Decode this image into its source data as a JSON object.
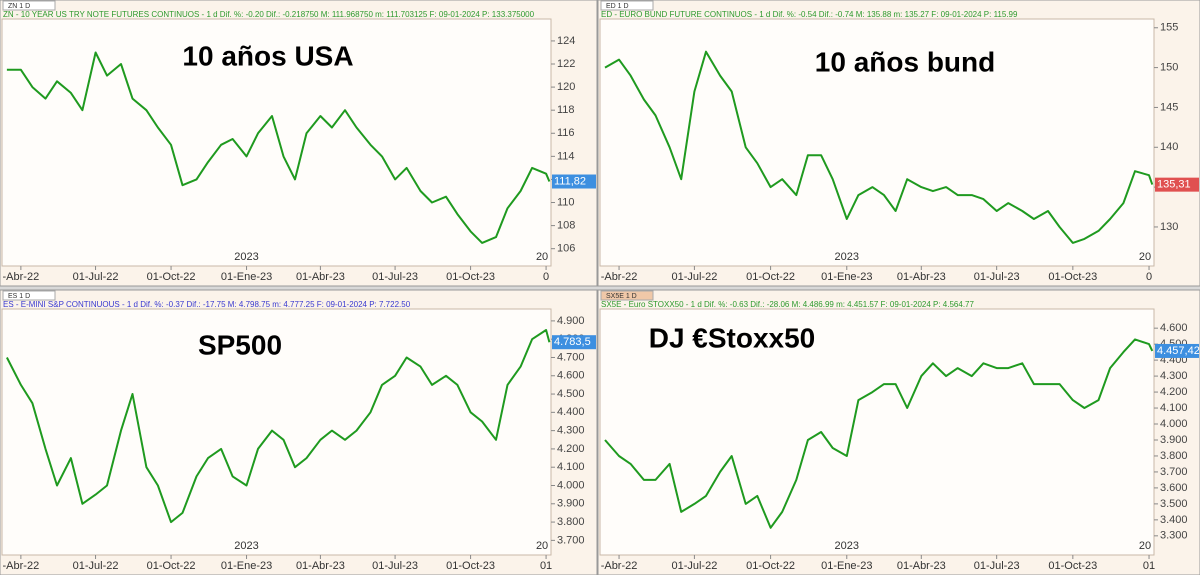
{
  "chart_data": [
    {
      "type": "line",
      "tab": "ZN 1 D",
      "header": "ZN - 10 YEAR US TRY NOTE FUTURES CONTINUOS - 1 d Dif. %: -0.20 Dif.: -0.218750 M: 111.968750 m: 111.703125 F: 09-01-2024 P: 133.375000",
      "header_color": "#2e9a2e",
      "title": "10 años USA",
      "x": [
        "15-Mar-22",
        "01-Abr-22",
        "15-Abr-22",
        "01-May-22",
        "15-May-22",
        "01-Jun-22",
        "15-Jun-22",
        "01-Jul-22",
        "15-Jul-22",
        "01-Ago-22",
        "15-Ago-22",
        "01-Sep-22",
        "15-Sep-22",
        "01-Oct-22",
        "15-Oct-22",
        "01-Nov-22",
        "15-Nov-22",
        "01-Dic-22",
        "15-Dic-22",
        "01-Ene-23",
        "15-Ene-23",
        "01-Feb-23",
        "15-Feb-23",
        "01-Mar-23",
        "15-Mar-23",
        "01-Abr-23",
        "15-Abr-23",
        "01-May-23",
        "15-May-23",
        "01-Jun-23",
        "15-Jun-23",
        "01-Jul-23",
        "15-Jul-23",
        "01-Ago-23",
        "15-Ago-23",
        "01-Sep-23",
        "15-Sep-23",
        "01-Oct-23",
        "15-Oct-23",
        "01-Nov-23",
        "15-Nov-23",
        "01-Dic-23",
        "15-Dic-23",
        "01-Ene-24",
        "05-Ene-24"
      ],
      "values": [
        121.5,
        121.5,
        120,
        119,
        120.5,
        119.5,
        118,
        123,
        121,
        122,
        119,
        118,
        116.5,
        115,
        111.5,
        112,
        113.5,
        115,
        115.5,
        114,
        116,
        117.5,
        114,
        112,
        116,
        117.5,
        116.5,
        118,
        116.5,
        115,
        114,
        112,
        113,
        111,
        110,
        110.5,
        109,
        107.5,
        106.5,
        107,
        109.5,
        111,
        113,
        112.5,
        111.82
      ],
      "color": "#1f9a1f",
      "xlim": [
        "09-Mar-22",
        "07-Ene-24"
      ],
      "ylim": [
        104.5,
        125.9
      ],
      "yticks": [
        106,
        108,
        110,
        112,
        114,
        116,
        118,
        120,
        122,
        124
      ],
      "xticks": [
        {
          "value": "01-Abr-22",
          "label": "-Abr-22"
        },
        "01-Jul-22",
        "01-Oct-22",
        "01-Ene-23",
        "01-Abr-23",
        "01-Jul-23",
        "01-Oct-23",
        {
          "value": "01-Ene-24",
          "label": "0"
        }
      ],
      "annotations": [
        {
          "x": "01-Ene-23",
          "text": "2023"
        },
        {
          "x": "01-Ene-24",
          "text": "20"
        }
      ],
      "last_price": {
        "value": 111.82,
        "label": "111,82"
      },
      "last_color": "#3d8fe0"
    },
    {
      "type": "line",
      "tab": "ED 1 D",
      "header": "ED - EURO BUND FUTURE CONTINUOS - 1 d Dif. %: -0.54 Dif.: -0.74 M: 135.88 m: 135.27 F: 09-01-2024 P: 115.99",
      "header_color": "#2e9a2e",
      "title": "10 años bund",
      "x": [
        "15-Mar-22",
        "01-Abr-22",
        "15-Abr-22",
        "01-May-22",
        "15-May-22",
        "01-Jun-22",
        "15-Jun-22",
        "01-Jul-22",
        "15-Jul-22",
        "01-Ago-22",
        "15-Ago-22",
        "01-Sep-22",
        "15-Sep-22",
        "01-Oct-22",
        "15-Oct-22",
        "01-Nov-22",
        "15-Nov-22",
        "01-Dic-22",
        "15-Dic-22",
        "01-Ene-23",
        "15-Ene-23",
        "01-Feb-23",
        "15-Feb-23",
        "01-Mar-23",
        "15-Mar-23",
        "01-Abr-23",
        "15-Abr-23",
        "01-May-23",
        "15-May-23",
        "01-Jun-23",
        "15-Jun-23",
        "01-Jul-23",
        "15-Jul-23",
        "01-Ago-23",
        "15-Ago-23",
        "01-Sep-23",
        "15-Sep-23",
        "01-Oct-23",
        "15-Oct-23",
        "01-Nov-23",
        "15-Nov-23",
        "01-Dic-23",
        "15-Dic-23",
        "01-Ene-24",
        "05-Ene-24"
      ],
      "values": [
        150,
        151,
        149,
        146,
        144,
        140,
        136,
        147,
        152,
        149,
        147,
        140,
        138,
        135,
        136,
        134,
        139,
        139,
        136,
        131,
        134,
        135,
        134,
        132,
        136,
        135,
        134.5,
        135,
        134,
        134,
        133.5,
        132,
        133,
        132,
        131,
        132,
        130,
        128,
        128.5,
        129.5,
        131,
        133,
        137,
        136.5,
        135.31
      ],
      "color": "#1f9a1f",
      "xlim": [
        "09-Mar-22",
        "07-Ene-24"
      ],
      "ylim": [
        125.1,
        156.1
      ],
      "yticks": [
        130,
        135,
        140,
        145,
        150,
        155
      ],
      "xticks": [
        {
          "value": "01-Abr-22",
          "label": "-Abr-22"
        },
        "01-Jul-22",
        "01-Oct-22",
        "01-Ene-23",
        "01-Abr-23",
        "01-Jul-23",
        "01-Oct-23",
        {
          "value": "01-Ene-24",
          "label": "0"
        }
      ],
      "annotations": [
        {
          "x": "01-Ene-23",
          "text": "2023"
        },
        {
          "x": "01-Ene-24",
          "text": "20"
        }
      ],
      "last_price": {
        "value": 135.31,
        "label": "135,31"
      },
      "last_color": "#e05050"
    },
    {
      "type": "line",
      "tab": "ES 1 D",
      "header": "ES - E-MINI S&P CONTINUOUS - 1 d Dif. %: -0.37 Dif.: -17.75 M: 4.798.75 m: 4.777.25 F: 09-01-2024 P: 7.722.50",
      "header_color": "#3a3ad0",
      "title": "SP500",
      "x": [
        "15-Mar-22",
        "01-Abr-22",
        "15-Abr-22",
        "01-May-22",
        "15-May-22",
        "01-Jun-22",
        "15-Jun-22",
        "01-Jul-22",
        "15-Jul-22",
        "01-Ago-22",
        "15-Ago-22",
        "01-Sep-22",
        "15-Sep-22",
        "01-Oct-22",
        "15-Oct-22",
        "01-Nov-22",
        "15-Nov-22",
        "01-Dic-22",
        "15-Dic-22",
        "01-Ene-23",
        "15-Ene-23",
        "01-Feb-23",
        "15-Feb-23",
        "01-Mar-23",
        "15-Mar-23",
        "01-Abr-23",
        "15-Abr-23",
        "01-May-23",
        "15-May-23",
        "01-Jun-23",
        "15-Jun-23",
        "01-Jul-23",
        "15-Jul-23",
        "01-Ago-23",
        "15-Ago-23",
        "01-Sep-23",
        "15-Sep-23",
        "01-Oct-23",
        "15-Oct-23",
        "01-Nov-23",
        "15-Nov-23",
        "01-Dic-23",
        "15-Dic-23",
        "01-Ene-24",
        "05-Ene-24"
      ],
      "values": [
        4700,
        4550,
        4450,
        4200,
        4000,
        4150,
        3900,
        3950,
        4000,
        4300,
        4500,
        4100,
        4000,
        3800,
        3850,
        4050,
        4150,
        4200,
        4050,
        4000,
        4200,
        4300,
        4250,
        4100,
        4150,
        4250,
        4300,
        4250,
        4300,
        4400,
        4550,
        4600,
        4700,
        4650,
        4550,
        4600,
        4550,
        4400,
        4350,
        4250,
        4550,
        4650,
        4800,
        4850,
        4783.5
      ],
      "color": "#1f9a1f",
      "xlim": [
        "09-Mar-22",
        "07-Ene-24"
      ],
      "ylim": [
        3620,
        4965
      ],
      "yticks": [
        {
          "value": 3700,
          "label": "3.700"
        },
        {
          "value": 3800,
          "label": "3.800"
        },
        {
          "value": 3900,
          "label": "3.900"
        },
        {
          "value": 4000,
          "label": "4.000"
        },
        {
          "value": 4100,
          "label": "4.100"
        },
        {
          "value": 4200,
          "label": "4.200"
        },
        {
          "value": 4300,
          "label": "4.300"
        },
        {
          "value": 4400,
          "label": "4.400"
        },
        {
          "value": 4500,
          "label": "4.500"
        },
        {
          "value": 4600,
          "label": "4.600"
        },
        {
          "value": 4700,
          "label": "4.700"
        },
        {
          "value": 4800,
          "label": "4.800"
        },
        {
          "value": 4900,
          "label": "4.900"
        }
      ],
      "xticks": [
        {
          "value": "01-Abr-22",
          "label": "-Abr-22"
        },
        "01-Jul-22",
        "01-Oct-22",
        "01-Ene-23",
        "01-Abr-23",
        "01-Jul-23",
        "01-Oct-23",
        {
          "value": "01-Ene-24",
          "label": "01"
        }
      ],
      "annotations": [
        {
          "x": "01-Ene-23",
          "text": "2023"
        },
        {
          "x": "01-Ene-24",
          "text": "20"
        }
      ],
      "last_price": {
        "value": 4783.5,
        "label": "4.783,5"
      },
      "last_color": "#3d8fe0"
    },
    {
      "type": "line",
      "tab": "SX5E 1 D",
      "header": "SX5E - Euro STOXX50 - 1 d Dif. %: -0.63 Dif.: -28.06 M: 4.486.99 m: 4.451.57 F: 09-01-2024 P: 4.564.77",
      "header_color": "#2e9a2e",
      "title": "DJ €Stoxx50",
      "x": [
        "15-Mar-22",
        "01-Abr-22",
        "15-Abr-22",
        "01-May-22",
        "15-May-22",
        "01-Jun-22",
        "15-Jun-22",
        "01-Jul-22",
        "15-Jul-22",
        "01-Ago-22",
        "15-Ago-22",
        "01-Sep-22",
        "15-Sep-22",
        "01-Oct-22",
        "15-Oct-22",
        "01-Nov-22",
        "15-Nov-22",
        "01-Dic-22",
        "15-Dic-22",
        "01-Ene-23",
        "15-Ene-23",
        "01-Feb-23",
        "15-Feb-23",
        "01-Mar-23",
        "15-Mar-23",
        "01-Abr-23",
        "15-Abr-23",
        "01-May-23",
        "15-May-23",
        "01-Jun-23",
        "15-Jun-23",
        "01-Jul-23",
        "15-Jul-23",
        "01-Ago-23",
        "15-Ago-23",
        "01-Sep-23",
        "15-Sep-23",
        "01-Oct-23",
        "15-Oct-23",
        "01-Nov-23",
        "15-Nov-23",
        "01-Dic-23",
        "15-Dic-23",
        "01-Ene-24",
        "05-Ene-24"
      ],
      "values": [
        3900,
        3800,
        3750,
        3650,
        3650,
        3750,
        3450,
        3500,
        3550,
        3700,
        3800,
        3500,
        3550,
        3350,
        3450,
        3650,
        3900,
        3950,
        3850,
        3800,
        4150,
        4200,
        4250,
        4250,
        4100,
        4300,
        4380,
        4300,
        4350,
        4300,
        4380,
        4350,
        4350,
        4380,
        4250,
        4250,
        4250,
        4150,
        4100,
        4150,
        4350,
        4450,
        4530,
        4500,
        4457.42
      ],
      "color": "#1f9a1f",
      "xlim": [
        "09-Mar-22",
        "07-Ene-24"
      ],
      "ylim": [
        3180,
        4720
      ],
      "yticks": [
        {
          "value": 3300,
          "label": "3.300"
        },
        {
          "value": 3400,
          "label": "3.400"
        },
        {
          "value": 3500,
          "label": "3.500"
        },
        {
          "value": 3600,
          "label": "3.600"
        },
        {
          "value": 3700,
          "label": "3.700"
        },
        {
          "value": 3800,
          "label": "3.800"
        },
        {
          "value": 3900,
          "label": "3.900"
        },
        {
          "value": 4000,
          "label": "4.000"
        },
        {
          "value": 4100,
          "label": "4.100"
        },
        {
          "value": 4200,
          "label": "4.200"
        },
        {
          "value": 4300,
          "label": "4.300"
        },
        {
          "value": 4400,
          "label": "4.400"
        },
        {
          "value": 4500,
          "label": "4.500"
        },
        {
          "value": 4600,
          "label": "4.600"
        }
      ],
      "xticks": [
        {
          "value": "01-Abr-22",
          "label": "-Abr-22"
        },
        "01-Jul-22",
        "01-Oct-22",
        "01-Ene-23",
        "01-Abr-23",
        "01-Jul-23",
        "01-Oct-23",
        {
          "value": "01-Ene-24",
          "label": "01"
        }
      ],
      "annotations": [
        {
          "x": "01-Ene-23",
          "text": "2023"
        },
        {
          "x": "01-Ene-24",
          "text": "20"
        }
      ],
      "last_price": {
        "value": 4457.42,
        "label": "4.457,42"
      },
      "last_color": "#3d8fe0"
    }
  ]
}
